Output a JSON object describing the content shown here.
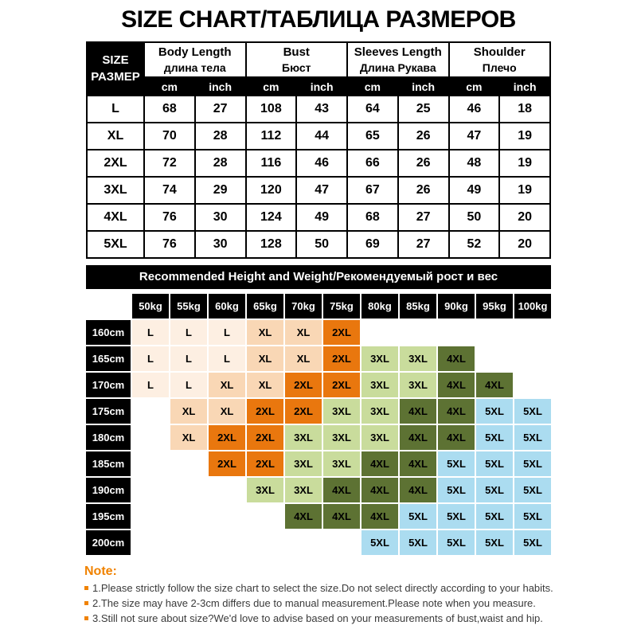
{
  "title": "SIZE CHART/ТАБЛИЦА РАЗМЕРОВ",
  "chart_data": [
    {
      "type": "table",
      "corner": {
        "line1": "SIZE",
        "line2": "РАЗМЕР"
      },
      "column_groups": [
        {
          "en": "Body Length",
          "ru": "длина тела"
        },
        {
          "en": "Bust",
          "ru": "Бюст"
        },
        {
          "en": "Sleeves Length",
          "ru": "Длина Рукава"
        },
        {
          "en": "Shoulder",
          "ru": "Плечо"
        }
      ],
      "units": [
        "cm",
        "inch"
      ],
      "rows": [
        {
          "size": "L",
          "values": [
            68,
            27,
            108,
            43,
            64,
            25,
            46,
            18
          ]
        },
        {
          "size": "XL",
          "values": [
            70,
            28,
            112,
            44,
            65,
            26,
            47,
            19
          ]
        },
        {
          "size": "2XL",
          "values": [
            72,
            28,
            116,
            46,
            66,
            26,
            48,
            19
          ]
        },
        {
          "size": "3XL",
          "values": [
            74,
            29,
            120,
            47,
            67,
            26,
            49,
            19
          ]
        },
        {
          "size": "4XL",
          "values": [
            76,
            30,
            124,
            49,
            68,
            27,
            50,
            20
          ]
        },
        {
          "size": "5XL",
          "values": [
            76,
            30,
            128,
            50,
            69,
            27,
            52,
            20
          ]
        }
      ]
    },
    {
      "type": "table",
      "title": "Recommended Height and Weight/Рекомендуемый рост и вес",
      "weights": [
        "50kg",
        "55kg",
        "60kg",
        "65kg",
        "70kg",
        "75kg",
        "80kg",
        "85kg",
        "90kg",
        "95kg",
        "100kg"
      ],
      "heights": [
        "160cm",
        "165cm",
        "170cm",
        "175cm",
        "180cm",
        "185cm",
        "190cm",
        "195cm",
        "200cm"
      ],
      "cells": [
        [
          "L",
          "L",
          "L",
          "XL",
          "XL",
          "2XL",
          "",
          "",
          "",
          "",
          ""
        ],
        [
          "L",
          "L",
          "L",
          "XL",
          "XL",
          "2XL",
          "3XL",
          "3XL",
          "4XL",
          "",
          ""
        ],
        [
          "L",
          "L",
          "XL",
          "XL",
          "2XL",
          "2XL",
          "3XL",
          "3XL",
          "4XL",
          "4XL",
          ""
        ],
        [
          "",
          "XL",
          "XL",
          "2XL",
          "2XL",
          "3XL",
          "3XL",
          "4XL",
          "4XL",
          "5XL",
          "5XL"
        ],
        [
          "",
          "XL",
          "2XL",
          "2XL",
          "3XL",
          "3XL",
          "3XL",
          "4XL",
          "4XL",
          "5XL",
          "5XL"
        ],
        [
          "",
          "",
          "2XL",
          "2XL",
          "3XL",
          "3XL",
          "4XL",
          "4XL",
          "5XL",
          "5XL",
          "5XL"
        ],
        [
          "",
          "",
          "",
          "3XL",
          "3XL",
          "4XL",
          "4XL",
          "4XL",
          "5XL",
          "5XL",
          "5XL"
        ],
        [
          "",
          "",
          "",
          "",
          "4XL",
          "4XL",
          "4XL",
          "5XL",
          "5XL",
          "5XL",
          "5XL"
        ],
        [
          "",
          "",
          "",
          "",
          "",
          "",
          "5XL",
          "5XL",
          "5XL",
          "5XL",
          "5XL"
        ]
      ]
    }
  ],
  "notes": {
    "label": "Note:",
    "items": [
      "1.Please strictly follow the size chart to select the size.Do not select directly according to your habits.",
      "2.The size may have 2-3cm differs due to manual measurement.Please note when you measure.",
      "3.Still not sure about size?We'd love to advise based on your measurements of bust,waist and hip."
    ]
  },
  "colors": {
    "accent_orange": "#f08200",
    "header_bg": "#000000",
    "header_text": "#ffffff",
    "size_colors": {
      "L": "#fdefe2",
      "XL": "#f9d7b5",
      "2XL": "#e9770e",
      "3XL": "#c9dc9c",
      "4XL": "#5d7233",
      "5XL": "#abdcf0"
    }
  }
}
